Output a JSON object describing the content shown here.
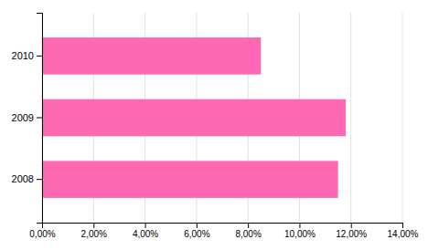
{
  "chart_data": {
    "type": "bar",
    "orientation": "horizontal",
    "categories": [
      "2010",
      "2009",
      "2008"
    ],
    "values": [
      0.085,
      0.118,
      0.115
    ],
    "color": "#FF69B4",
    "xlim": [
      0,
      0.14
    ],
    "xticks": [
      {
        "value": 0.0,
        "label": "0,00%"
      },
      {
        "value": 0.02,
        "label": "2,00%"
      },
      {
        "value": 0.04,
        "label": "4,00%"
      },
      {
        "value": 0.06,
        "label": "6,00%"
      },
      {
        "value": 0.08,
        "label": "8,00%"
      },
      {
        "value": 0.1,
        "label": "10,00%"
      },
      {
        "value": 0.12,
        "label": "12,00%"
      },
      {
        "value": 0.14,
        "label": "14,00%"
      }
    ],
    "grid": true
  }
}
